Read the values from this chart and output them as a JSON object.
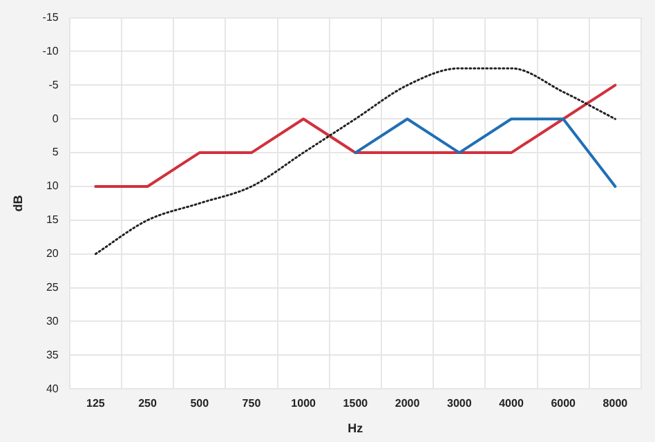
{
  "chart_data": {
    "type": "line",
    "xlabel": "Hz",
    "ylabel": "dB",
    "categories": [
      "125",
      "250",
      "500",
      "750",
      "1000",
      "1500",
      "2000",
      "3000",
      "4000",
      "6000",
      "8000"
    ],
    "series": [
      {
        "color": "#222222",
        "line_style": "dotted",
        "values": [
          20,
          15,
          12.5,
          10,
          5,
          0,
          -5,
          -7.5,
          -7.5,
          -4,
          0
        ]
      },
      {
        "color": "#1f6fb5",
        "line_style": "solid",
        "values": [
          null,
          null,
          null,
          null,
          null,
          5,
          0,
          5,
          0,
          0,
          10
        ]
      },
      {
        "color": "#d0313d",
        "line_style": "solid",
        "values": [
          10,
          10,
          5,
          5,
          0,
          5,
          5,
          5,
          5,
          0,
          -5
        ]
      }
    ],
    "ylim": [
      40,
      -15
    ],
    "yticks": [
      -15,
      -10,
      -5,
      0,
      5,
      10,
      15,
      20,
      25,
      30,
      35,
      40
    ],
    "grid": true,
    "legend": false,
    "marker": "none"
  }
}
